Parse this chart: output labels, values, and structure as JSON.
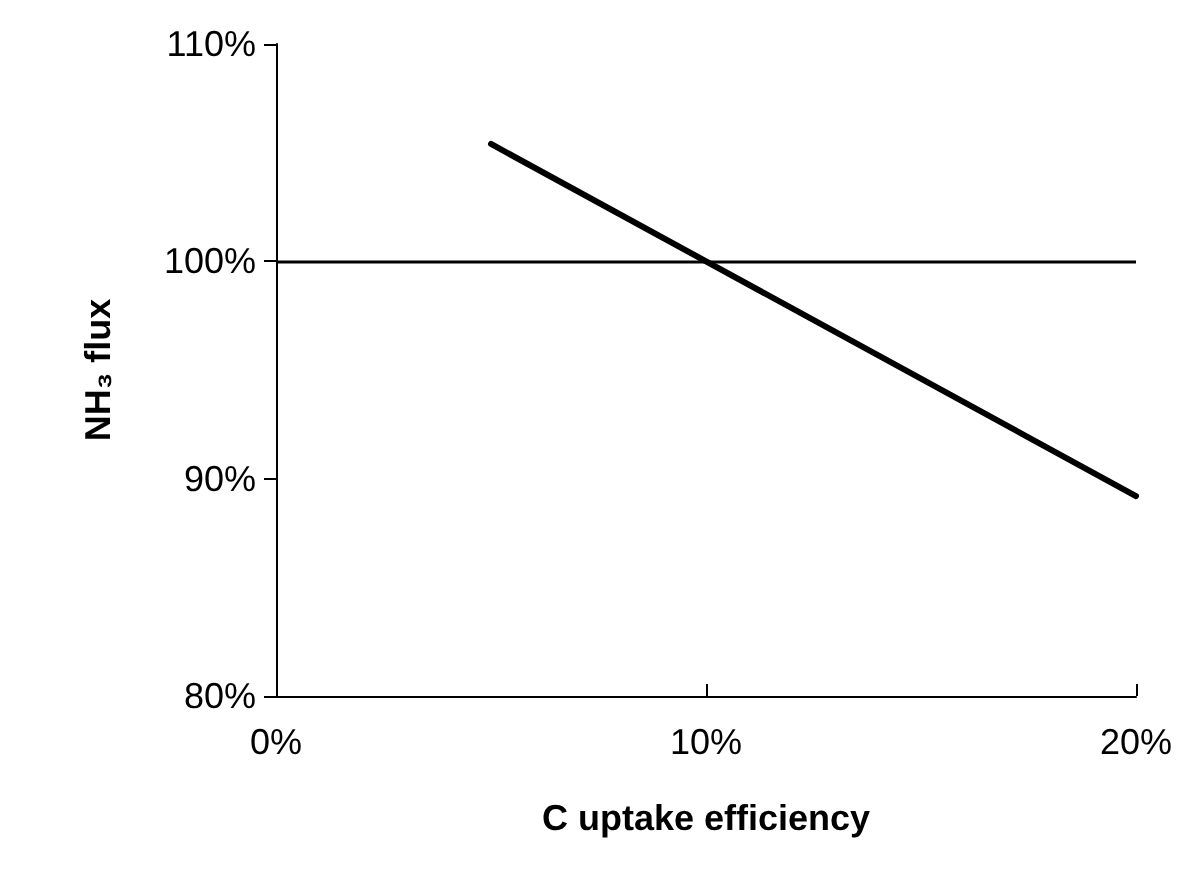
{
  "chart_data": {
    "type": "line",
    "xlabel": "C uptake efficiency",
    "ylabel": "NH₃ flux",
    "x": [
      5,
      20
    ],
    "series": [
      {
        "color": "#000000",
        "values": [
          105.4,
          89.2
        ]
      }
    ],
    "xlim": [
      0,
      20
    ],
    "xticks": [
      {
        "value": 0,
        "label": "0%"
      },
      {
        "value": 10,
        "label": "10%"
      },
      {
        "value": 20,
        "label": "20%"
      }
    ],
    "ylim": [
      80,
      110
    ],
    "yticks": [
      {
        "value": 80,
        "label": "80%"
      },
      {
        "value": 90,
        "label": "90%"
      },
      {
        "value": 100,
        "label": "100%"
      },
      {
        "value": 110,
        "label": "110%"
      }
    ],
    "ref_lines": [
      {
        "axis": "y",
        "value": 100,
        "color": "#000000",
        "line_style": "solid"
      }
    ],
    "grid": false,
    "marker": "none",
    "line_style": "solid"
  }
}
